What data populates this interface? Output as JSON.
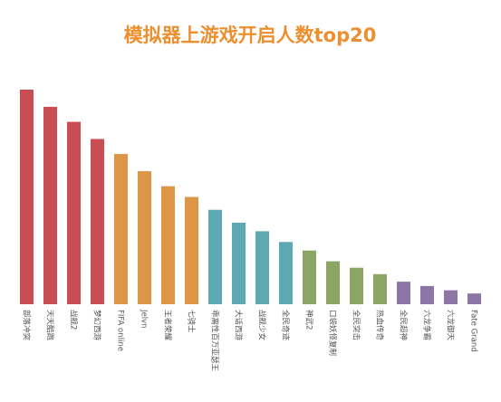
{
  "chart_data": {
    "type": "bar",
    "title": "模拟器上游戏开启人数top20",
    "xlabel": "",
    "ylabel": "",
    "ylim": [
      0,
      100
    ],
    "grid": false,
    "legend": "none",
    "categories": [
      "部落冲突",
      "天天酷跑",
      "战舰2",
      "梦幻西游",
      "FIFA online",
      "Jelvn",
      "王者荣耀",
      "七骑士",
      "乖离性百万亚瑟王",
      "大话西游",
      "战舰少女",
      "全民奇迹",
      "神武2",
      "口袋妖怪复制",
      "全民突击",
      "热血传奇",
      "全民超神",
      "六龙争霸",
      "六龙御天",
      "Fate Grand"
    ],
    "values": [
      100,
      92,
      85,
      77,
      70,
      62,
      55,
      50,
      44,
      38,
      34,
      29,
      25,
      20,
      17,
      14,
      10.5,
      8.5,
      6.5,
      5
    ],
    "colors": [
      "#c84e54",
      "#c84e54",
      "#c84e54",
      "#c84e54",
      "#dd9646",
      "#dd9646",
      "#dd9646",
      "#dd9646",
      "#5ea8b3",
      "#5ea8b3",
      "#5ea8b3",
      "#5ea8b3",
      "#8aa564",
      "#8aa564",
      "#8aa564",
      "#8aa564",
      "#8c76a6",
      "#8c76a6",
      "#8c76a6",
      "#8c76a6"
    ],
    "title_color": "#ec8f2e"
  }
}
